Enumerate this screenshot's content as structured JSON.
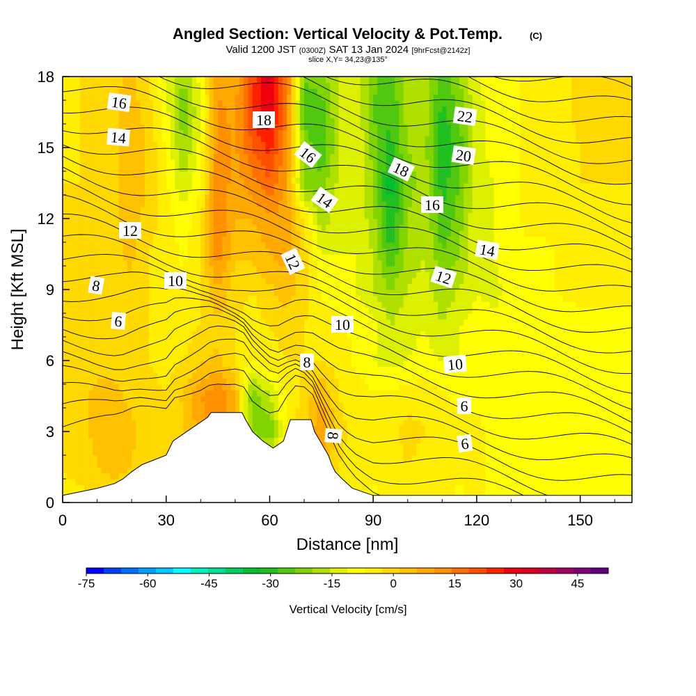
{
  "title_main": "Angled Section: Vertical Velocity & Pot.Temp.",
  "title_copyright": "(C)",
  "valid_a": "Valid 1200 JST",
  "valid_b": "(0300Z)",
  "valid_c": "SAT 13 Jan 2024",
  "valid_d": "[9hrFcst@2142z]",
  "slice_info": "slice X,Y= 34,23@135°",
  "chart_data": {
    "type": "heatmap",
    "xlabel": "Distance [nm]",
    "ylabel": "Height [Kft MSL]",
    "xlim": [
      0,
      165
    ],
    "ylim": [
      0,
      18
    ],
    "x_ticks": [
      "0",
      "30",
      "60",
      "90",
      "120",
      "150"
    ],
    "x_tick_values": [
      0,
      30,
      60,
      90,
      120,
      150
    ],
    "y_ticks": [
      "0",
      "3",
      "6",
      "9",
      "12",
      "15",
      "18"
    ],
    "y_tick_values": [
      0,
      3,
      6,
      9,
      12,
      15,
      18
    ],
    "colorbar": {
      "label": "Vertical Velocity [cm/s]",
      "tick_labels": [
        "-75",
        "-60",
        "-45",
        "-30",
        "-15",
        "0",
        "15",
        "30",
        "45"
      ],
      "tick_values": [
        -75,
        -60,
        -45,
        -30,
        -15,
        0,
        15,
        30,
        45
      ],
      "range": [
        -75,
        52.5
      ],
      "step": 5,
      "colors": [
        "#0000ff",
        "#0040ff",
        "#0070ff",
        "#00a0ff",
        "#00c8ff",
        "#00ffff",
        "#00f0c0",
        "#00e090",
        "#00d060",
        "#00c030",
        "#20c020",
        "#50c810",
        "#80d400",
        "#b0e000",
        "#ddf000",
        "#ffff00",
        "#ffee00",
        "#ffd800",
        "#ffc000",
        "#ffa800",
        "#ff9000",
        "#ff7000",
        "#ff5000",
        "#ff2000",
        "#ee0010",
        "#d80020",
        "#c00040",
        "#a00060",
        "#800078",
        "#600080"
      ]
    },
    "vertical_velocity_field": {
      "units": "cm/s",
      "x_nm": [
        0,
        5,
        10,
        15,
        20,
        25,
        30,
        35,
        40,
        45,
        50,
        55,
        60,
        65,
        70,
        75,
        80,
        85,
        90,
        95,
        100,
        105,
        110,
        115,
        120,
        125,
        130,
        135,
        140,
        145,
        150,
        155,
        160,
        165
      ],
      "z_kft": [
        0,
        1.5,
        3,
        4.5,
        6,
        7.5,
        9,
        10.5,
        12,
        13.5,
        15,
        16.5,
        18
      ],
      "values": [
        [
          8,
          8,
          8,
          8,
          8,
          8,
          8,
          8,
          8,
          8,
          8,
          8,
          8,
          8,
          8,
          12,
          6,
          4,
          4,
          6,
          10,
          8,
          6,
          4,
          6,
          4,
          2,
          2,
          2,
          4,
          4,
          4,
          4,
          4
        ],
        [
          10,
          12,
          15,
          18,
          15,
          12,
          10,
          12,
          16,
          16,
          8,
          4,
          4,
          4,
          8,
          18,
          10,
          8,
          6,
          6,
          10,
          8,
          6,
          6,
          6,
          4,
          4,
          2,
          2,
          4,
          4,
          4,
          4,
          4
        ],
        [
          10,
          14,
          16,
          18,
          16,
          12,
          10,
          14,
          22,
          30,
          20,
          -10,
          -15,
          8,
          14,
          25,
          12,
          8,
          6,
          8,
          12,
          10,
          8,
          6,
          6,
          4,
          4,
          4,
          2,
          4,
          4,
          4,
          4,
          4
        ],
        [
          10,
          14,
          16,
          16,
          14,
          12,
          10,
          16,
          25,
          30,
          20,
          -15,
          -5,
          5,
          12,
          20,
          10,
          8,
          6,
          6,
          8,
          8,
          6,
          4,
          4,
          4,
          4,
          2,
          2,
          2,
          4,
          4,
          4,
          4
        ],
        [
          10,
          12,
          14,
          14,
          12,
          10,
          8,
          10,
          14,
          16,
          10,
          5,
          8,
          10,
          10,
          10,
          8,
          4,
          0,
          -2,
          0,
          2,
          0,
          0,
          2,
          2,
          2,
          2,
          2,
          2,
          4,
          4,
          4,
          4
        ],
        [
          12,
          12,
          12,
          12,
          12,
          10,
          8,
          8,
          10,
          14,
          10,
          8,
          10,
          12,
          10,
          8,
          6,
          4,
          2,
          -5,
          -2,
          0,
          -5,
          0,
          2,
          2,
          2,
          2,
          2,
          2,
          4,
          4,
          4,
          4
        ],
        [
          14,
          14,
          12,
          14,
          14,
          10,
          8,
          6,
          10,
          20,
          12,
          10,
          14,
          18,
          12,
          4,
          2,
          0,
          -5,
          -10,
          -5,
          -3,
          -8,
          -5,
          0,
          -2,
          2,
          4,
          4,
          6,
          6,
          6,
          6,
          6
        ],
        [
          14,
          14,
          12,
          14,
          16,
          10,
          8,
          4,
          10,
          28,
          16,
          16,
          20,
          22,
          12,
          0,
          0,
          0,
          -5,
          -20,
          -8,
          -5,
          -15,
          -10,
          -2,
          0,
          4,
          4,
          4,
          6,
          6,
          6,
          6,
          6
        ],
        [
          12,
          12,
          12,
          14,
          18,
          12,
          8,
          2,
          8,
          30,
          20,
          20,
          24,
          22,
          10,
          -8,
          -2,
          0,
          -8,
          -25,
          -10,
          -5,
          -20,
          -12,
          0,
          0,
          4,
          6,
          6,
          8,
          8,
          8,
          8,
          8
        ],
        [
          10,
          10,
          12,
          14,
          20,
          14,
          6,
          -5,
          5,
          30,
          22,
          28,
          34,
          24,
          -15,
          -12,
          -4,
          0,
          -10,
          -28,
          -12,
          -8,
          -22,
          -15,
          -2,
          0,
          4,
          6,
          6,
          8,
          10,
          10,
          10,
          10
        ],
        [
          8,
          10,
          12,
          14,
          20,
          14,
          4,
          -10,
          2,
          28,
          24,
          35,
          42,
          26,
          -10,
          -20,
          -5,
          0,
          -12,
          -22,
          -10,
          -8,
          -25,
          -18,
          -2,
          2,
          4,
          6,
          6,
          8,
          10,
          12,
          10,
          10
        ],
        [
          8,
          10,
          12,
          14,
          18,
          12,
          2,
          -14,
          0,
          26,
          24,
          40,
          50,
          30,
          -20,
          -18,
          -5,
          0,
          -15,
          -20,
          -8,
          -8,
          -22,
          -14,
          -2,
          2,
          4,
          6,
          6,
          8,
          12,
          12,
          10,
          10
        ],
        [
          8,
          10,
          12,
          14,
          16,
          10,
          0,
          -10,
          2,
          24,
          22,
          38,
          52,
          32,
          -14,
          -12,
          -4,
          0,
          -14,
          -18,
          -8,
          -6,
          -18,
          -10,
          0,
          2,
          4,
          6,
          6,
          8,
          12,
          12,
          10,
          10
        ]
      ]
    },
    "potential_temperature_contour_labels": [
      "16",
      "14",
      "18",
      "16",
      "14",
      "12",
      "12",
      "8",
      "10",
      "6",
      "22",
      "20",
      "18",
      "16",
      "14",
      "12",
      "10",
      "10",
      "8",
      "6",
      "8",
      "6",
      "10"
    ],
    "terrain_kft_at_nm": [
      [
        0,
        0.3
      ],
      [
        10,
        0.6
      ],
      [
        15,
        0.8
      ],
      [
        17.5,
        1
      ],
      [
        20,
        1.3
      ],
      [
        23,
        1.6
      ],
      [
        30,
        2
      ],
      [
        32,
        2.6
      ],
      [
        35,
        2.9
      ],
      [
        38,
        3.2
      ],
      [
        42,
        3.6
      ],
      [
        43,
        3.8
      ],
      [
        52,
        3.8
      ],
      [
        53,
        3.5
      ],
      [
        55,
        3
      ],
      [
        58,
        2.6
      ],
      [
        61,
        2.3
      ],
      [
        64,
        2.6
      ],
      [
        66,
        3.5
      ],
      [
        72,
        3.5
      ],
      [
        73,
        3
      ],
      [
        75,
        2.5
      ],
      [
        77,
        2
      ],
      [
        78,
        1.6
      ],
      [
        79,
        1.3
      ],
      [
        81,
        1
      ],
      [
        84,
        0.6
      ],
      [
        90,
        0.3
      ],
      [
        165,
        0.3
      ]
    ]
  }
}
